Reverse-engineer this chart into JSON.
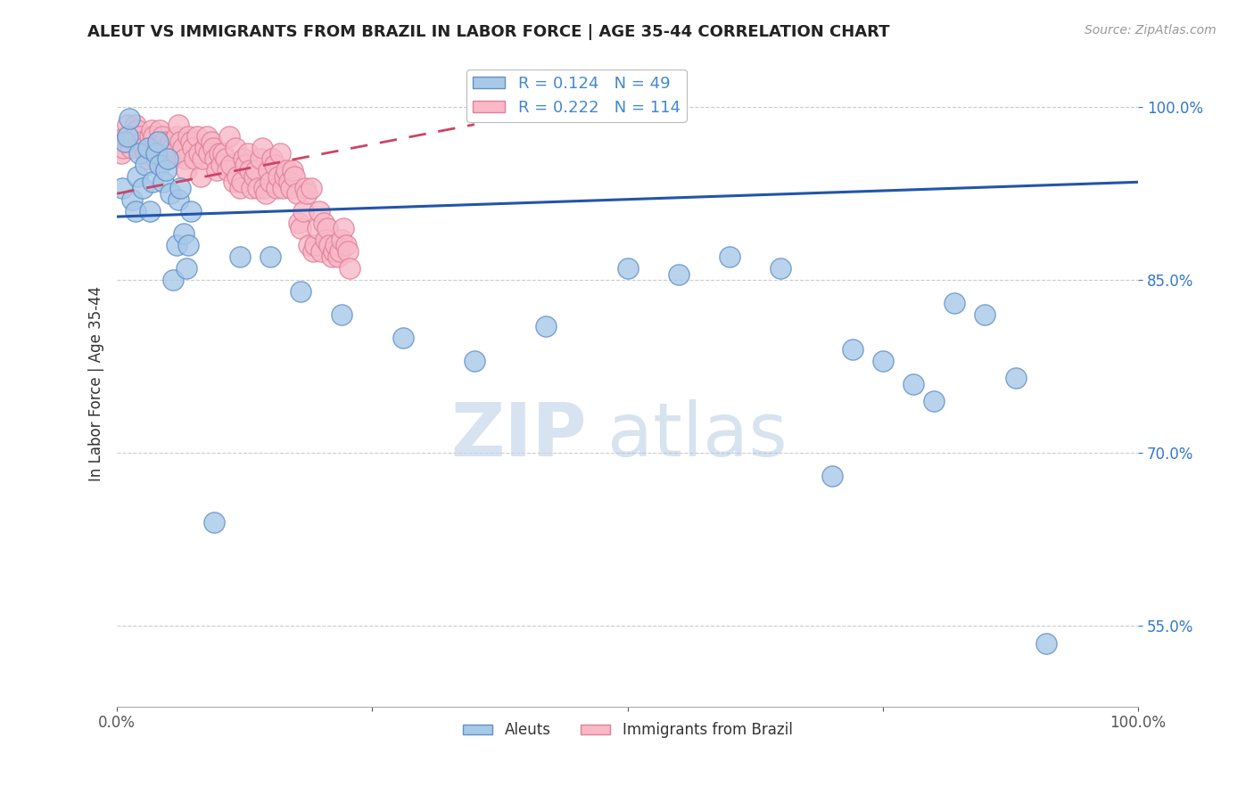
{
  "title": "ALEUT VS IMMIGRANTS FROM BRAZIL IN LABOR FORCE | AGE 35-44 CORRELATION CHART",
  "source": "Source: ZipAtlas.com",
  "ylabel": "In Labor Force | Age 35-44",
  "xlim": [
    0.0,
    100.0
  ],
  "ylim": [
    48.0,
    104.0
  ],
  "x_tick_labels": [
    "0.0%",
    "",
    "",
    "",
    "100.0%"
  ],
  "y_ticks": [
    55.0,
    70.0,
    85.0,
    100.0
  ],
  "y_tick_labels": [
    "55.0%",
    "70.0%",
    "85.0%",
    "100.0%"
  ],
  "aleut_color": "#a8c8e8",
  "brazil_color": "#f8b8c8",
  "aleut_edge": "#6090c8",
  "brazil_edge": "#e08098",
  "R_aleut": 0.124,
  "N_aleut": 49,
  "R_brazil": 0.222,
  "N_brazil": 114,
  "legend_R_color": "#4488cc",
  "watermark_zip": "ZIP",
  "watermark_atlas": "atlas",
  "aleut_line_x": [
    0.0,
    100.0
  ],
  "aleut_line_y": [
    90.5,
    93.5
  ],
  "brazil_line_x": [
    0.0,
    35.0
  ],
  "brazil_line_y": [
    92.5,
    98.5
  ],
  "aleut_x": [
    0.5,
    0.8,
    1.0,
    1.2,
    1.5,
    1.8,
    2.0,
    2.2,
    2.5,
    2.8,
    3.0,
    3.2,
    3.5,
    3.8,
    4.0,
    4.2,
    4.5,
    4.8,
    5.0,
    5.2,
    5.5,
    5.8,
    6.0,
    6.2,
    6.5,
    6.8,
    7.0,
    7.2,
    9.5,
    12.0,
    15.0,
    18.0,
    22.0,
    28.0,
    35.0,
    42.0,
    50.0,
    55.0,
    60.0,
    65.0,
    70.0,
    72.0,
    75.0,
    78.0,
    80.0,
    82.0,
    85.0,
    88.0,
    91.0
  ],
  "aleut_y": [
    93.0,
    97.0,
    97.5,
    99.0,
    92.0,
    91.0,
    94.0,
    96.0,
    93.0,
    95.0,
    96.5,
    91.0,
    93.5,
    96.0,
    97.0,
    95.0,
    93.5,
    94.5,
    95.5,
    92.5,
    85.0,
    88.0,
    92.0,
    93.0,
    89.0,
    86.0,
    88.0,
    91.0,
    64.0,
    87.0,
    87.0,
    84.0,
    82.0,
    80.0,
    78.0,
    81.0,
    86.0,
    85.5,
    87.0,
    86.0,
    68.0,
    79.0,
    78.0,
    76.0,
    74.5,
    83.0,
    82.0,
    76.5,
    53.5
  ],
  "brazil_x": [
    0.2,
    0.4,
    0.6,
    0.8,
    1.0,
    1.2,
    1.4,
    1.6,
    1.8,
    2.0,
    2.2,
    2.4,
    2.6,
    2.8,
    3.0,
    3.2,
    3.4,
    3.6,
    3.8,
    4.0,
    4.2,
    4.4,
    4.6,
    4.8,
    5.0,
    5.2,
    5.4,
    5.6,
    5.8,
    6.0,
    6.2,
    6.4,
    6.6,
    6.8,
    7.0,
    7.2,
    7.4,
    7.6,
    7.8,
    8.0,
    8.2,
    8.4,
    8.6,
    8.8,
    9.0,
    9.2,
    9.4,
    9.6,
    9.8,
    10.0,
    10.2,
    10.4,
    10.6,
    10.8,
    11.0,
    11.2,
    11.4,
    11.6,
    11.8,
    12.0,
    12.2,
    12.4,
    12.6,
    12.8,
    13.0,
    13.2,
    13.4,
    13.6,
    13.8,
    14.0,
    14.2,
    14.4,
    14.6,
    14.8,
    15.0,
    15.2,
    15.4,
    15.6,
    15.8,
    16.0,
    16.2,
    16.4,
    16.6,
    16.8,
    17.0,
    17.2,
    17.4,
    17.6,
    17.8,
    18.0,
    18.2,
    18.4,
    18.6,
    18.8,
    19.0,
    19.2,
    19.4,
    19.6,
    19.8,
    20.0,
    20.2,
    20.4,
    20.6,
    20.8,
    21.0,
    21.2,
    21.4,
    21.6,
    21.8,
    22.0,
    22.2,
    22.4,
    22.6,
    22.8
  ],
  "brazil_y": [
    97.0,
    96.0,
    96.5,
    97.5,
    98.5,
    97.0,
    96.5,
    97.5,
    98.5,
    98.0,
    97.5,
    97.0,
    96.5,
    96.0,
    95.5,
    97.5,
    98.0,
    97.5,
    95.5,
    96.5,
    98.0,
    97.5,
    97.0,
    96.5,
    95.5,
    97.0,
    96.5,
    96.0,
    97.5,
    98.5,
    97.0,
    96.5,
    95.5,
    94.5,
    97.5,
    97.0,
    96.5,
    95.5,
    97.5,
    96.0,
    94.0,
    95.5,
    96.5,
    97.5,
    96.0,
    97.0,
    96.5,
    95.5,
    94.5,
    96.0,
    95.0,
    96.0,
    95.5,
    94.5,
    97.5,
    95.0,
    93.5,
    96.5,
    94.0,
    93.0,
    93.5,
    95.5,
    95.0,
    96.0,
    94.5,
    93.0,
    94.0,
    94.5,
    93.0,
    95.5,
    96.5,
    93.0,
    92.5,
    94.5,
    93.5,
    95.5,
    95.0,
    93.0,
    94.0,
    96.0,
    93.0,
    94.0,
    94.5,
    93.5,
    93.0,
    94.5,
    94.0,
    92.5,
    90.0,
    89.5,
    91.0,
    93.0,
    92.5,
    88.0,
    93.0,
    87.5,
    88.0,
    89.5,
    91.0,
    87.5,
    90.0,
    88.5,
    89.5,
    88.0,
    87.0,
    87.5,
    88.0,
    87.0,
    87.5,
    88.5,
    89.5,
    88.0,
    87.5,
    86.0
  ]
}
